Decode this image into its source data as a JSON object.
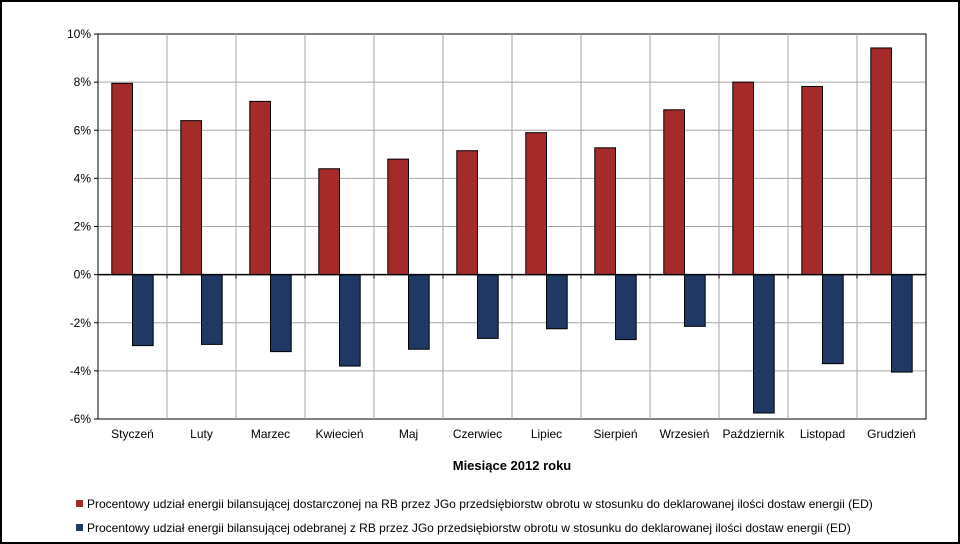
{
  "chart_data": {
    "type": "bar",
    "title": "",
    "xlabel": "Miesiące 2012 roku",
    "ylabel": "",
    "ylim": [
      -6,
      10
    ],
    "y_ticks": [
      10,
      8,
      6,
      4,
      2,
      0,
      -2,
      -4,
      -6
    ],
    "y_tick_labels": [
      "10%",
      "8%",
      "6%",
      "4%",
      "2%",
      "0%",
      "-2%",
      "-4%",
      "-6%"
    ],
    "grid": true,
    "legend_position": "bottom",
    "categories": [
      "Styczeń",
      "Luty",
      "Marzec",
      "Kwiecień",
      "Maj",
      "Czerwiec",
      "Lipiec",
      "Sierpień",
      "Wrzesień",
      "Październik",
      "Listopad",
      "Grudzień"
    ],
    "series": [
      {
        "name": "Procentowy udział energii bilansującej dostarczonej na RB przez JGo przedsiębiorstw obrotu w stosunku do deklarowanej ilości dostaw energii (ED)",
        "color": "#A52A2A",
        "values": [
          7.95,
          6.4,
          7.2,
          4.4,
          4.8,
          5.15,
          5.9,
          5.27,
          6.85,
          8.0,
          7.82,
          9.42
        ]
      },
      {
        "name": "Procentowy udział energii bilansującej odebranej z RB przez JGo przedsiębiorstw obrotu w stosunku do deklarowanej ilości dostaw energii (ED)",
        "color": "#1F3864",
        "values": [
          -2.95,
          -2.9,
          -3.2,
          -3.8,
          -3.1,
          -2.65,
          -2.25,
          -2.7,
          -2.15,
          -5.75,
          -3.7,
          -4.05
        ]
      }
    ]
  }
}
